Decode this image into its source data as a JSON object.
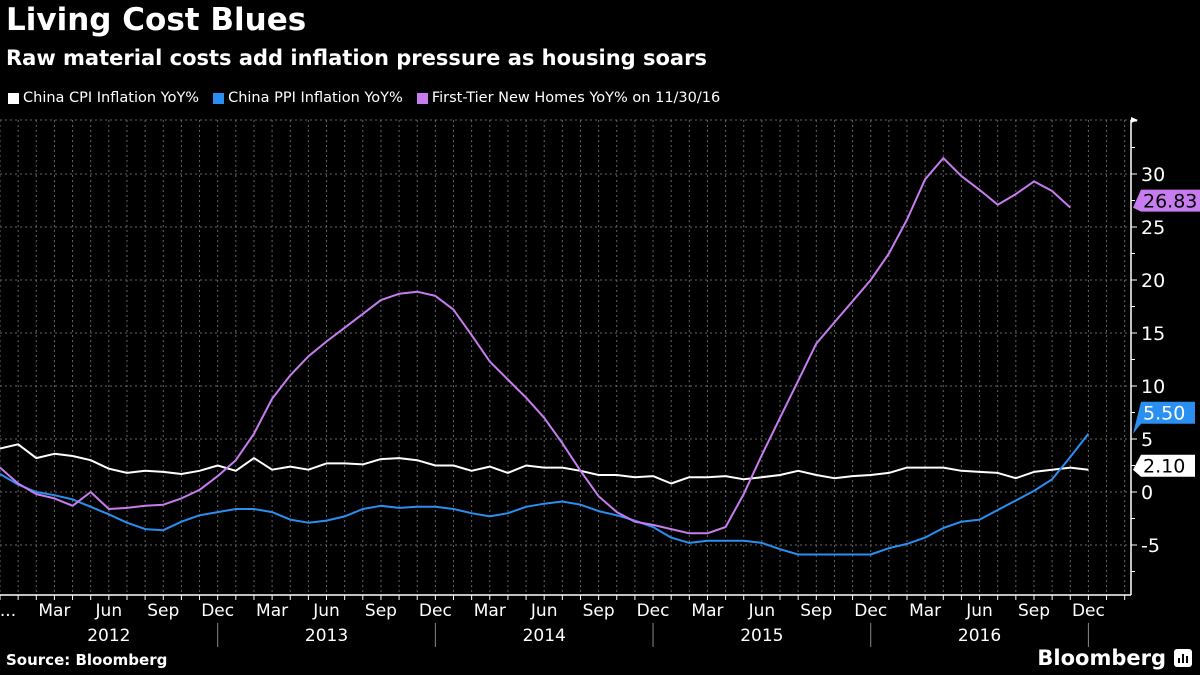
{
  "chart_data": {
    "type": "line",
    "title": "Living Cost Blues",
    "subtitle": "Raw material costs add inflation pressure as housing soars",
    "source": "Source: Bloomberg",
    "brand": "Bloomberg",
    "x_start": "2011-12",
    "x_frequency": "monthly",
    "x_tick_labels": [
      "...",
      "Mar",
      "Jun",
      "Sep",
      "Dec",
      "Mar",
      "Jun",
      "Sep",
      "Dec",
      "Mar",
      "Jun",
      "Sep",
      "Dec",
      "Mar",
      "Jun",
      "Sep",
      "Dec",
      "Mar",
      "Jun",
      "Sep",
      "Dec"
    ],
    "x_year_labels": [
      "2012",
      "2013",
      "2014",
      "2015",
      "2016"
    ],
    "y_ticks": [
      -5,
      0,
      5,
      10,
      15,
      20,
      25,
      30
    ],
    "ylim": [
      -9.7,
      35
    ],
    "y_axis_side": "right",
    "grid": true,
    "legend_position": "top-left",
    "series": [
      {
        "name": "China CPI Inflation YoY%",
        "color": "#ffffff",
        "last_label": "2.10",
        "values": [
          4.1,
          4.5,
          3.2,
          3.6,
          3.4,
          3.0,
          2.2,
          1.8,
          2.0,
          1.9,
          1.7,
          2.0,
          2.5,
          2.0,
          3.2,
          2.1,
          2.4,
          2.1,
          2.7,
          2.7,
          2.6,
          3.1,
          3.2,
          3.0,
          2.5,
          2.5,
          2.0,
          2.4,
          1.8,
          2.5,
          2.3,
          2.3,
          2.0,
          1.6,
          1.6,
          1.4,
          1.5,
          0.8,
          1.4,
          1.4,
          1.5,
          1.2,
          1.4,
          1.6,
          2.0,
          1.6,
          1.3,
          1.5,
          1.6,
          1.8,
          2.3,
          2.3,
          2.3,
          2.0,
          1.9,
          1.8,
          1.3,
          1.9,
          2.1,
          2.3,
          2.1
        ]
      },
      {
        "name": "China PPI Inflation YoY%",
        "color": "#2a8ff0",
        "last_label": "5.50",
        "values": [
          1.7,
          0.7,
          0.0,
          -0.3,
          -0.7,
          -1.4,
          -2.1,
          -2.9,
          -3.5,
          -3.6,
          -2.8,
          -2.2,
          -1.9,
          -1.6,
          -1.6,
          -1.9,
          -2.6,
          -2.9,
          -2.7,
          -2.3,
          -1.6,
          -1.3,
          -1.5,
          -1.4,
          -1.4,
          -1.6,
          -2.0,
          -2.3,
          -2.0,
          -1.4,
          -1.1,
          -0.9,
          -1.2,
          -1.8,
          -2.2,
          -2.7,
          -3.3,
          -4.3,
          -4.8,
          -4.6,
          -4.6,
          -4.6,
          -4.8,
          -5.4,
          -5.9,
          -5.9,
          -5.9,
          -5.9,
          -5.9,
          -5.3,
          -4.9,
          -4.3,
          -3.4,
          -2.8,
          -2.6,
          -1.7,
          -0.8,
          0.1,
          1.2,
          3.3,
          5.5
        ]
      },
      {
        "name": "First-Tier New Homes YoY% on 11/30/16",
        "color": "#c77cf0",
        "last_label": "26.83",
        "values": [
          2.3,
          0.8,
          -0.2,
          -0.6,
          -1.3,
          0.0,
          -1.6,
          -1.5,
          -1.3,
          -1.2,
          -0.6,
          0.2,
          1.5,
          3.0,
          5.5,
          8.8,
          11.0,
          12.8,
          14.2,
          15.5,
          16.8,
          18.1,
          18.7,
          18.9,
          18.5,
          17.2,
          14.8,
          12.3,
          10.6,
          8.9,
          7.0,
          4.6,
          2.0,
          -0.4,
          -1.9,
          -2.8,
          -3.1,
          -3.5,
          -3.9,
          -3.9,
          -3.3,
          -0.2,
          3.5,
          7.0,
          10.5,
          14.0,
          16.0,
          18.0,
          20.0,
          22.5,
          25.7,
          29.5,
          31.5,
          29.8,
          28.5,
          27.1,
          28.1,
          29.3,
          28.4,
          26.83
        ]
      }
    ]
  }
}
